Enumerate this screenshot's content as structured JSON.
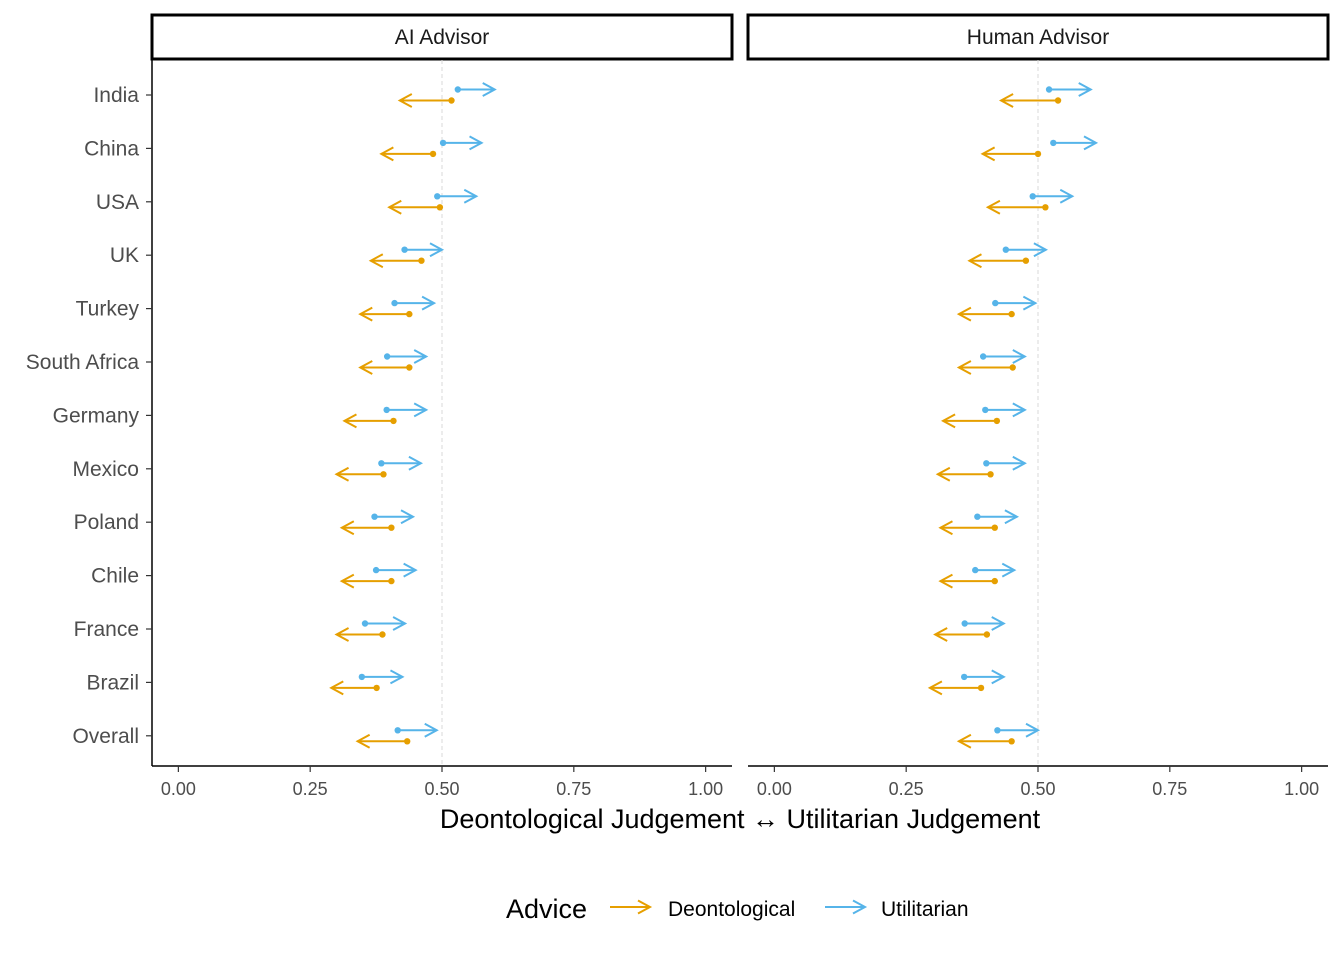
{
  "chart_data": {
    "type": "arrow-dot",
    "xlabel": "Deontological Judgement ↔ Utilitarian Judgement",
    "xlim": [
      -0.05,
      1.05
    ],
    "xticks": [
      0,
      0.25,
      0.5,
      0.75,
      1
    ],
    "xtick_labels": [
      "0.00",
      "0.25",
      "0.50",
      "0.75",
      "1.00"
    ],
    "reference_line": 0.5,
    "categories": [
      "India",
      "China",
      "USA",
      "UK",
      "Turkey",
      "South Africa",
      "Germany",
      "Mexico",
      "Poland",
      "Chile",
      "France",
      "Brazil",
      "Overall"
    ],
    "legend": {
      "title": "Advice",
      "position": "bottom",
      "items": [
        {
          "label": "Deontological",
          "color": "#E69F00"
        },
        {
          "label": "Utilitarian",
          "color": "#56B4E9"
        }
      ]
    },
    "panels": [
      {
        "title": "AI Advisor",
        "series": [
          {
            "name": "Utilitarian",
            "color": "#56B4E9",
            "start": [
              0.53,
              0.502,
              0.491,
              0.429,
              0.41,
              0.396,
              0.395,
              0.385,
              0.372,
              0.375,
              0.354,
              0.348,
              0.416
            ],
            "end": [
              0.6,
              0.575,
              0.565,
              0.5,
              0.485,
              0.47,
              0.47,
              0.46,
              0.445,
              0.45,
              0.43,
              0.425,
              0.49
            ]
          },
          {
            "name": "Deontological",
            "color": "#E69F00",
            "start": [
              0.518,
              0.483,
              0.496,
              0.461,
              0.438,
              0.438,
              0.408,
              0.389,
              0.404,
              0.404,
              0.387,
              0.376,
              0.434
            ],
            "end": [
              0.42,
              0.385,
              0.4,
              0.365,
              0.345,
              0.345,
              0.315,
              0.3,
              0.31,
              0.31,
              0.3,
              0.29,
              0.34
            ]
          }
        ]
      },
      {
        "title": "Human Advisor",
        "series": [
          {
            "name": "Utilitarian",
            "color": "#56B4E9",
            "start": [
              0.521,
              0.529,
              0.49,
              0.439,
              0.419,
              0.396,
              0.4,
              0.402,
              0.385,
              0.381,
              0.361,
              0.36,
              0.423
            ],
            "end": [
              0.6,
              0.61,
              0.565,
              0.515,
              0.495,
              0.475,
              0.475,
              0.475,
              0.46,
              0.455,
              0.435,
              0.435,
              0.5
            ]
          },
          {
            "name": "Deontological",
            "color": "#E69F00",
            "start": [
              0.538,
              0.5,
              0.514,
              0.477,
              0.45,
              0.452,
              0.422,
              0.41,
              0.418,
              0.418,
              0.403,
              0.392,
              0.45
            ],
            "end": [
              0.43,
              0.395,
              0.405,
              0.37,
              0.35,
              0.35,
              0.32,
              0.31,
              0.315,
              0.315,
              0.305,
              0.295,
              0.35
            ]
          }
        ]
      }
    ]
  }
}
